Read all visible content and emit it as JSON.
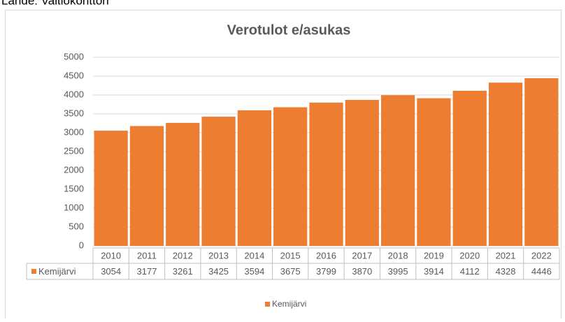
{
  "chart_data": {
    "type": "bar",
    "source": "Lähde: Valtiokonttori",
    "title": "Verotulot e/asukas",
    "categories": [
      "2010",
      "2011",
      "2012",
      "2013",
      "2014",
      "2015",
      "2016",
      "2017",
      "2018",
      "2019",
      "2020",
      "2021",
      "2022"
    ],
    "series": [
      {
        "name": "Kemijärvi",
        "color": "#ed7d31",
        "values": [
          3054,
          3177,
          3261,
          3425,
          3594,
          3675,
          3799,
          3870,
          3995,
          3914,
          4112,
          4328,
          4446
        ]
      }
    ],
    "ylim": [
      0,
      5000
    ],
    "yticks": [
      0,
      500,
      1000,
      1500,
      2000,
      2500,
      3000,
      3500,
      4000,
      4500,
      5000
    ],
    "grid": true,
    "data_table": true,
    "legend": "bottom"
  }
}
